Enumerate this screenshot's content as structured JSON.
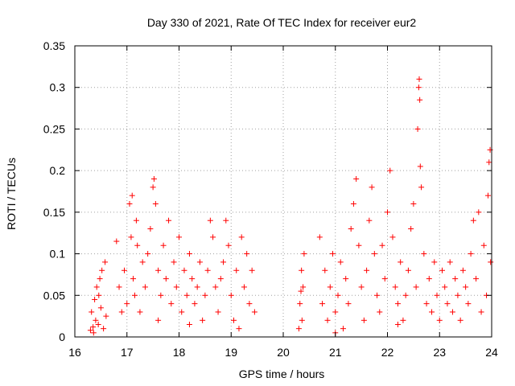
{
  "chart_data": {
    "type": "scatter",
    "title": "Day 330 of 2021, Rate Of TEC Index for receiver eur2",
    "xlabel": "GPS time / hours",
    "ylabel": "ROTI / TECUs",
    "xlim": [
      16,
      24
    ],
    "ylim": [
      0,
      0.35
    ],
    "xticks": [
      16,
      17,
      18,
      19,
      20,
      21,
      22,
      23,
      24
    ],
    "xtick_labels": [
      "16",
      "17",
      "18",
      "19",
      "20",
      "21",
      "22",
      "23",
      "24"
    ],
    "yticks": [
      0,
      0.05,
      0.1,
      0.15,
      0.2,
      0.25,
      0.3,
      0.35
    ],
    "ytick_labels": [
      "0",
      "0.05",
      "0.1",
      "0.15",
      "0.2",
      "0.25",
      "0.3",
      "0.35"
    ],
    "grid": true,
    "marker": "+",
    "marker_color": "#ff0000",
    "series": [
      {
        "name": "ROTI",
        "points": [
          [
            16.3,
            0.008
          ],
          [
            16.32,
            0.03
          ],
          [
            16.35,
            0.012
          ],
          [
            16.38,
            0.045
          ],
          [
            16.4,
            0.02
          ],
          [
            16.42,
            0.06
          ],
          [
            16.45,
            0.015
          ],
          [
            16.48,
            0.07
          ],
          [
            16.5,
            0.035
          ],
          [
            16.52,
            0.08
          ],
          [
            16.55,
            0.01
          ],
          [
            16.58,
            0.09
          ],
          [
            16.6,
            0.025
          ],
          [
            16.36,
            0.005
          ],
          [
            16.46,
            0.05
          ],
          [
            16.8,
            0.115
          ],
          [
            16.85,
            0.06
          ],
          [
            16.9,
            0.03
          ],
          [
            16.95,
            0.08
          ],
          [
            17.0,
            0.04
          ],
          [
            17.05,
            0.16
          ],
          [
            17.08,
            0.12
          ],
          [
            17.1,
            0.17
          ],
          [
            17.12,
            0.07
          ],
          [
            17.15,
            0.05
          ],
          [
            17.18,
            0.14
          ],
          [
            17.2,
            0.11
          ],
          [
            17.25,
            0.03
          ],
          [
            17.3,
            0.09
          ],
          [
            17.35,
            0.06
          ],
          [
            17.4,
            0.1
          ],
          [
            17.45,
            0.13
          ],
          [
            17.5,
            0.18
          ],
          [
            17.52,
            0.19
          ],
          [
            17.55,
            0.16
          ],
          [
            17.6,
            0.08
          ],
          [
            17.65,
            0.05
          ],
          [
            17.7,
            0.11
          ],
          [
            17.75,
            0.07
          ],
          [
            17.8,
            0.14
          ],
          [
            17.85,
            0.04
          ],
          [
            17.9,
            0.09
          ],
          [
            17.95,
            0.06
          ],
          [
            18.0,
            0.12
          ],
          [
            18.05,
            0.03
          ],
          [
            18.1,
            0.08
          ],
          [
            18.15,
            0.05
          ],
          [
            18.2,
            0.1
          ],
          [
            18.25,
            0.07
          ],
          [
            18.3,
            0.04
          ],
          [
            18.35,
            0.06
          ],
          [
            18.4,
            0.09
          ],
          [
            18.45,
            0.02
          ],
          [
            18.5,
            0.05
          ],
          [
            18.55,
            0.08
          ],
          [
            18.6,
            0.14
          ],
          [
            18.65,
            0.12
          ],
          [
            18.7,
            0.06
          ],
          [
            18.75,
            0.03
          ],
          [
            18.8,
            0.07
          ],
          [
            18.85,
            0.09
          ],
          [
            18.9,
            0.14
          ],
          [
            18.95,
            0.11
          ],
          [
            19.0,
            0.05
          ],
          [
            19.05,
            0.02
          ],
          [
            19.1,
            0.08
          ],
          [
            19.15,
            0.01
          ],
          [
            19.2,
            0.12
          ],
          [
            19.25,
            0.06
          ],
          [
            19.3,
            0.1
          ],
          [
            19.35,
            0.04
          ],
          [
            19.4,
            0.08
          ],
          [
            19.45,
            0.03
          ],
          [
            17.6,
            0.02
          ],
          [
            18.2,
            0.015
          ],
          [
            20.3,
            0.01
          ],
          [
            20.32,
            0.04
          ],
          [
            20.35,
            0.08
          ],
          [
            20.38,
            0.06
          ],
          [
            20.4,
            0.1
          ],
          [
            20.36,
            0.02
          ],
          [
            20.34,
            0.055
          ],
          [
            20.7,
            0.12
          ],
          [
            20.75,
            0.04
          ],
          [
            20.8,
            0.08
          ],
          [
            20.85,
            0.02
          ],
          [
            20.9,
            0.06
          ],
          [
            20.95,
            0.1
          ],
          [
            21.0,
            0.03
          ],
          [
            21.05,
            0.05
          ],
          [
            21.1,
            0.09
          ],
          [
            21.15,
            0.01
          ],
          [
            21.2,
            0.07
          ],
          [
            21.25,
            0.04
          ],
          [
            21.3,
            0.13
          ],
          [
            21.35,
            0.16
          ],
          [
            21.4,
            0.19
          ],
          [
            21.45,
            0.11
          ],
          [
            21.5,
            0.06
          ],
          [
            21.55,
            0.02
          ],
          [
            21.6,
            0.08
          ],
          [
            21.65,
            0.14
          ],
          [
            21.7,
            0.18
          ],
          [
            21.75,
            0.1
          ],
          [
            21.8,
            0.05
          ],
          [
            21.85,
            0.03
          ],
          [
            21.9,
            0.11
          ],
          [
            21.95,
            0.07
          ],
          [
            22.0,
            0.15
          ],
          [
            22.05,
            0.2
          ],
          [
            22.1,
            0.12
          ],
          [
            22.15,
            0.06
          ],
          [
            22.2,
            0.04
          ],
          [
            22.25,
            0.09
          ],
          [
            22.3,
            0.02
          ],
          [
            22.35,
            0.05
          ],
          [
            22.4,
            0.08
          ],
          [
            22.45,
            0.13
          ],
          [
            22.5,
            0.16
          ],
          [
            22.55,
            0.06
          ],
          [
            22.58,
            0.25
          ],
          [
            22.6,
            0.3
          ],
          [
            22.61,
            0.31
          ],
          [
            22.62,
            0.285
          ],
          [
            22.63,
            0.205
          ],
          [
            22.65,
            0.18
          ],
          [
            22.7,
            0.1
          ],
          [
            22.75,
            0.04
          ],
          [
            22.8,
            0.07
          ],
          [
            22.85,
            0.03
          ],
          [
            22.9,
            0.09
          ],
          [
            22.95,
            0.05
          ],
          [
            23.0,
            0.02
          ],
          [
            23.05,
            0.08
          ],
          [
            23.1,
            0.06
          ],
          [
            23.15,
            0.04
          ],
          [
            23.2,
            0.09
          ],
          [
            23.25,
            0.03
          ],
          [
            23.3,
            0.07
          ],
          [
            23.35,
            0.05
          ],
          [
            23.4,
            0.02
          ],
          [
            23.45,
            0.08
          ],
          [
            23.5,
            0.06
          ],
          [
            23.55,
            0.04
          ],
          [
            23.6,
            0.1
          ],
          [
            23.65,
            0.14
          ],
          [
            23.7,
            0.07
          ],
          [
            23.75,
            0.15
          ],
          [
            23.8,
            0.03
          ],
          [
            23.85,
            0.11
          ],
          [
            23.9,
            0.05
          ],
          [
            23.93,
            0.17
          ],
          [
            23.95,
            0.21
          ],
          [
            23.97,
            0.225
          ],
          [
            23.98,
            0.09
          ],
          [
            21.0,
            0.005
          ],
          [
            22.2,
            0.015
          ]
        ]
      }
    ]
  }
}
